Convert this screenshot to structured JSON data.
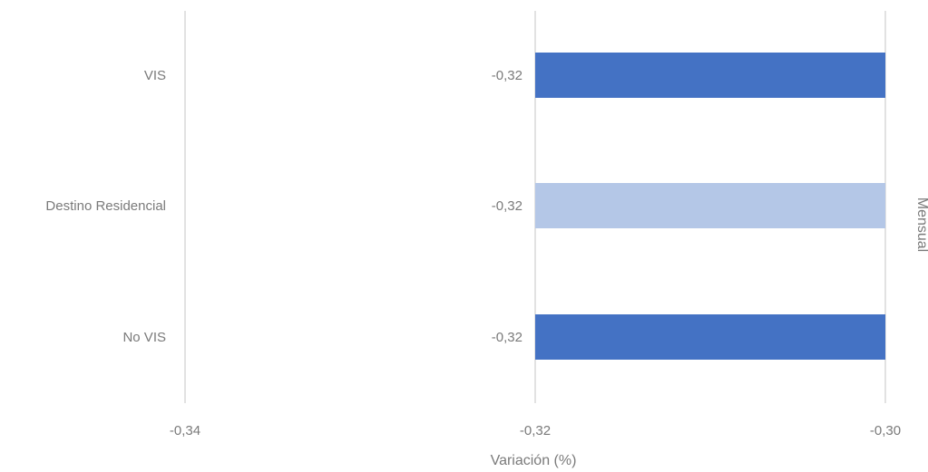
{
  "chart_data": {
    "type": "bar",
    "orientation": "horizontal",
    "categories": [
      "VIS",
      "Destino Residencial",
      "No VIS"
    ],
    "values": [
      -0.32,
      -0.32,
      -0.32
    ],
    "data_labels": [
      "-0,32",
      "-0,32",
      "-0,32"
    ],
    "bar_colors": [
      "#4472c4",
      "#b4c7e7",
      "#4472c4"
    ],
    "xlabel": "Variación (%)",
    "facet_label": "Mensual",
    "xlim": [
      -0.34,
      -0.3
    ],
    "xticks": [
      -0.34,
      -0.32,
      -0.3
    ],
    "xtick_labels": [
      "-0,34",
      "-0,32",
      "-0,30"
    ],
    "grid": true
  }
}
